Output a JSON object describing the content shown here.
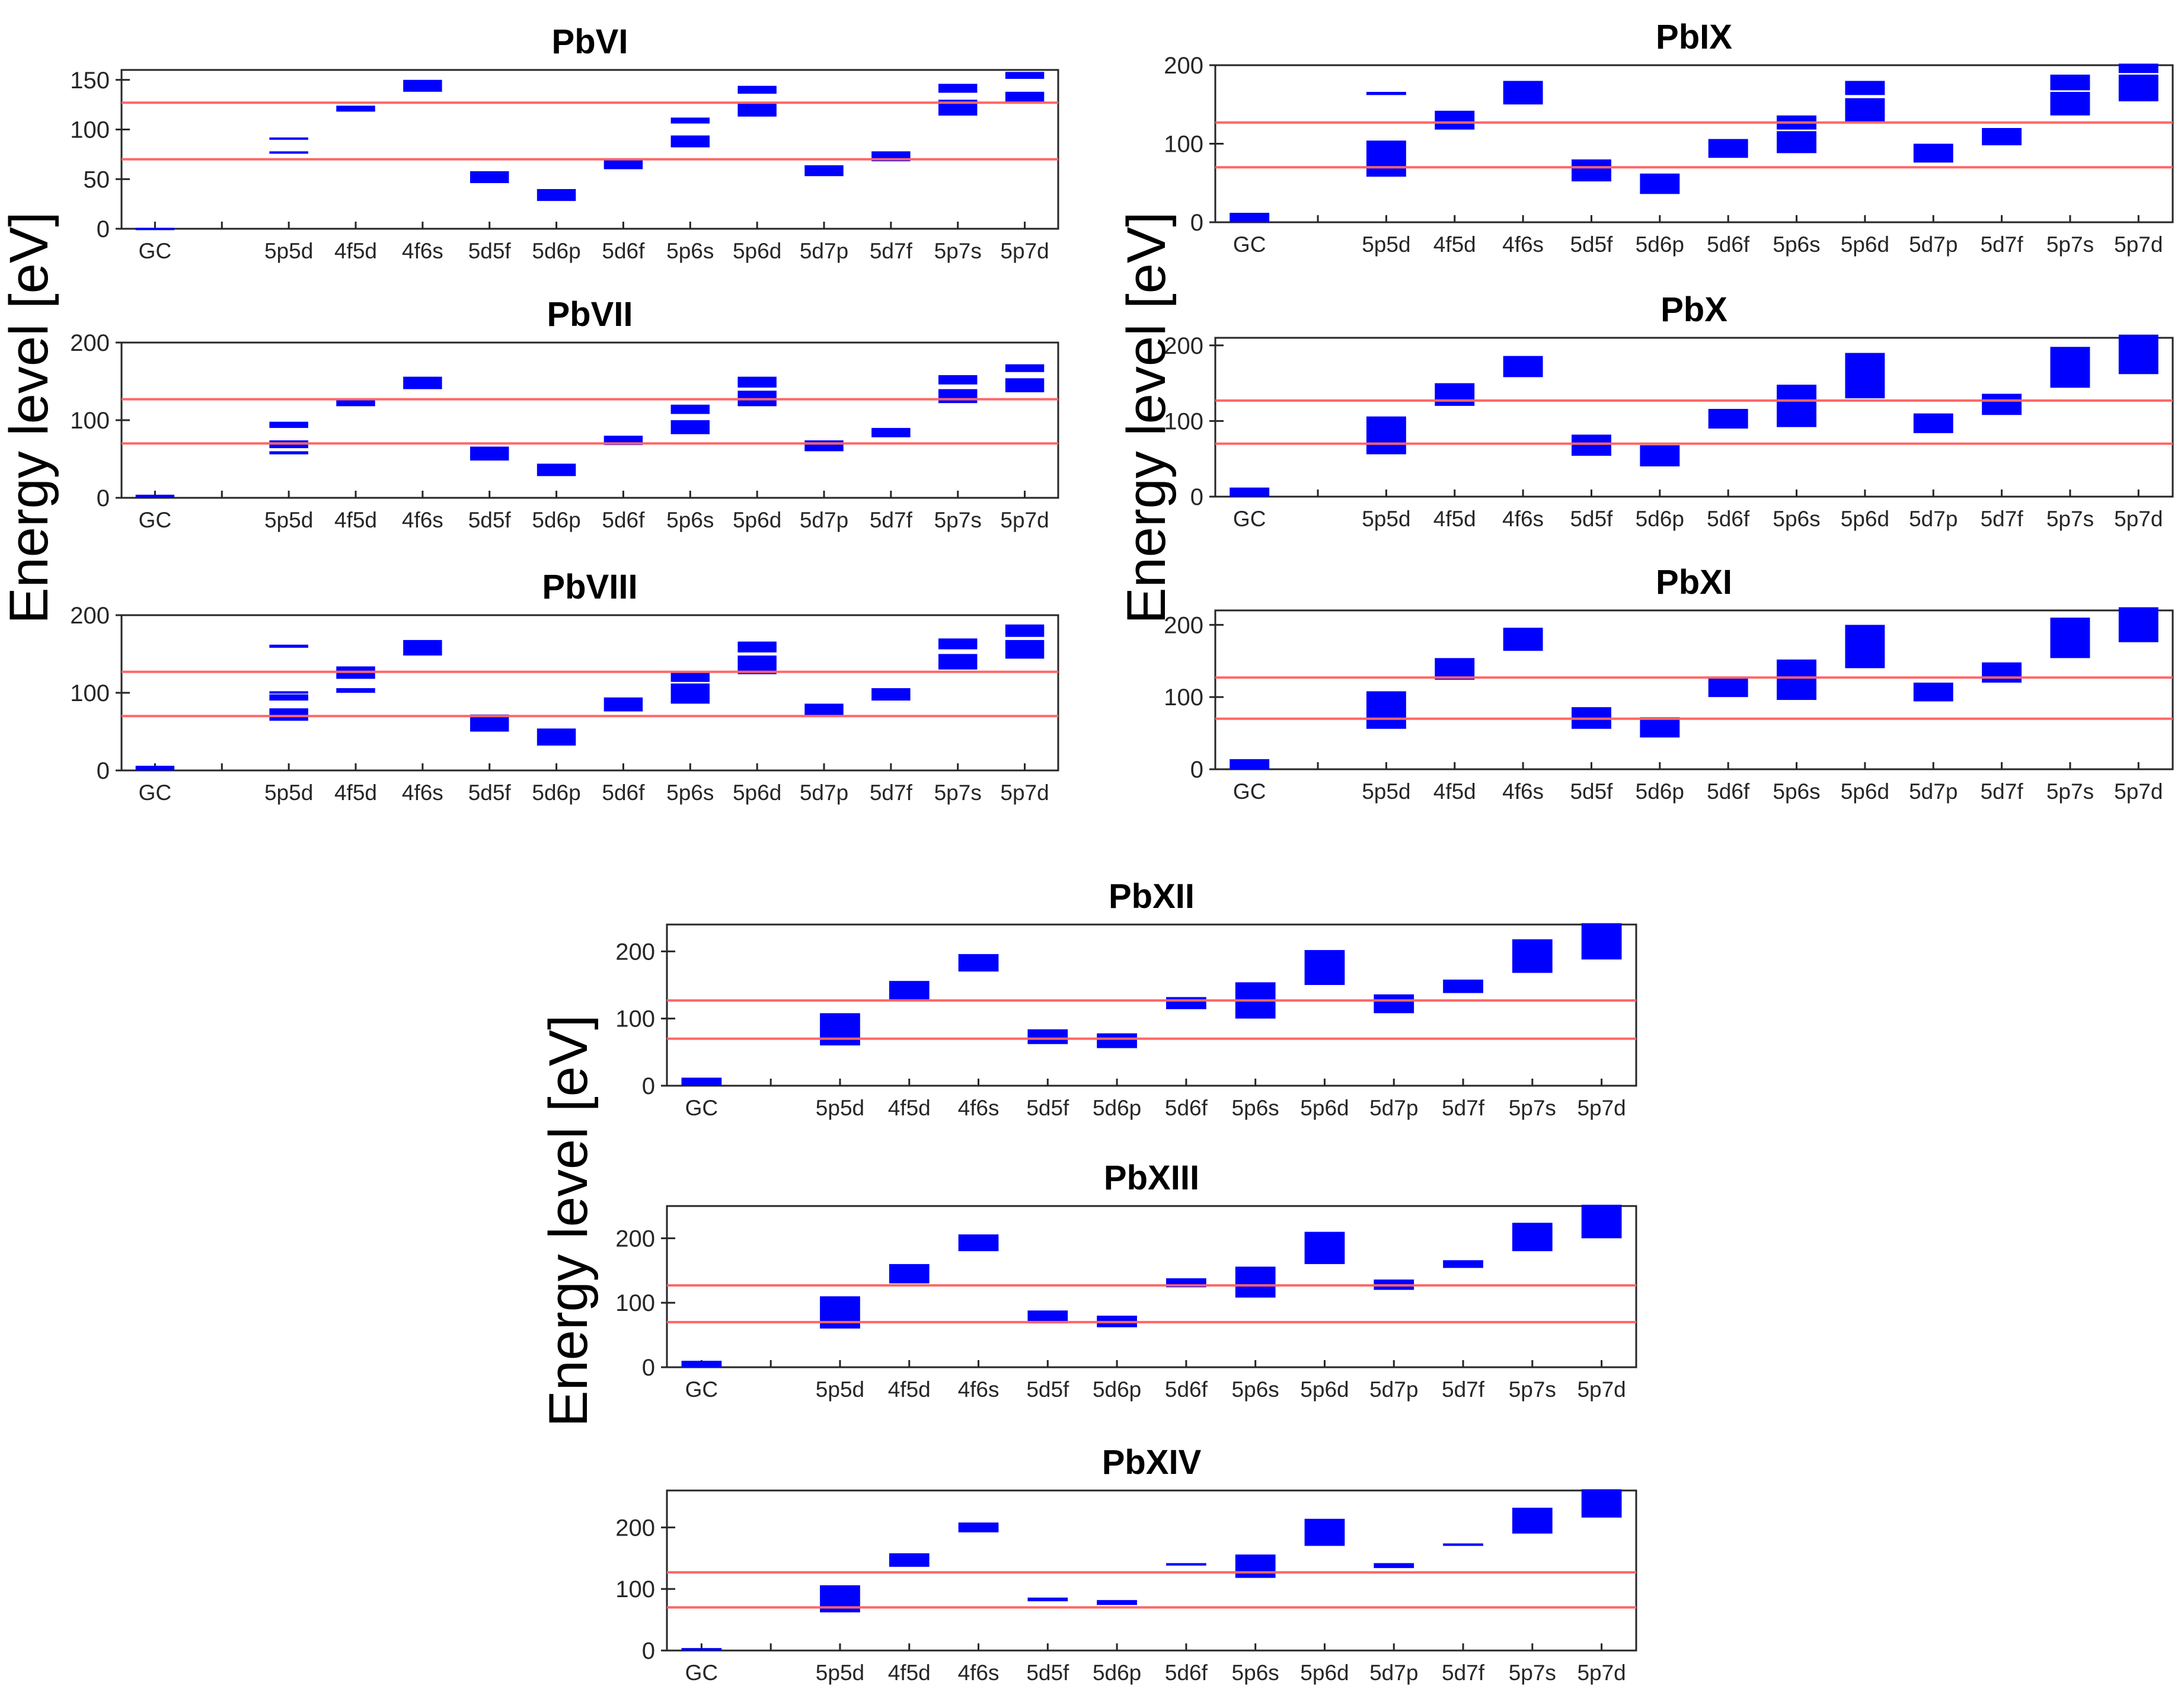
{
  "figure": {
    "ylabel_left": "Energy level [eV]",
    "ylabel_right": "Energy level [eV]",
    "ylabel_bottom": "Energy level [eV]",
    "colors": {
      "level": "#0000ff",
      "reference_line": "#ff6666",
      "axis": "#262626"
    }
  },
  "chart_data": [
    {
      "id": "pbvi",
      "type": "bar",
      "title": "PbVI",
      "categories": [
        "GC",
        "",
        "5p5d",
        "4f5d",
        "4f6s",
        "5d5f",
        "5d6p",
        "5d6f",
        "5p6s",
        "5p6d",
        "5d7p",
        "5d7f",
        "5p7s",
        "5p7d"
      ],
      "ylim": [
        0,
        160
      ],
      "yticks": [
        0,
        50,
        100,
        150
      ],
      "ref_lines": [
        70,
        127
      ],
      "level_bands": [
        {
          "category": "GC",
          "min": 0,
          "max": 1
        },
        {
          "category": "5p5d",
          "min": 76,
          "max": 78
        },
        {
          "category": "5p5d",
          "min": 91,
          "max": 92
        },
        {
          "category": "4f5d",
          "min": 118,
          "max": 124
        },
        {
          "category": "4f6s",
          "min": 138,
          "max": 150
        },
        {
          "category": "5d5f",
          "min": 46,
          "max": 58
        },
        {
          "category": "5d6p",
          "min": 28,
          "max": 40
        },
        {
          "category": "5d6f",
          "min": 60,
          "max": 70
        },
        {
          "category": "5p6s",
          "min": 82,
          "max": 94
        },
        {
          "category": "5p6s",
          "min": 106,
          "max": 112
        },
        {
          "category": "5p6d",
          "min": 113,
          "max": 126
        },
        {
          "category": "5p6d",
          "min": 136,
          "max": 144
        },
        {
          "category": "5d7p",
          "min": 53,
          "max": 64
        },
        {
          "category": "5d7f",
          "min": 68,
          "max": 78
        },
        {
          "category": "5p7s",
          "min": 114,
          "max": 130
        },
        {
          "category": "5p7s",
          "min": 137,
          "max": 146
        },
        {
          "category": "5p7d",
          "min": 127,
          "max": 138
        },
        {
          "category": "5p7d",
          "min": 151,
          "max": 158
        }
      ]
    },
    {
      "id": "pbvii",
      "type": "bar",
      "title": "PbVII",
      "categories": [
        "GC",
        "",
        "5p5d",
        "4f5d",
        "4f6s",
        "5d5f",
        "5d6p",
        "5d6f",
        "5p6s",
        "5p6d",
        "5d7p",
        "5d7f",
        "5p7s",
        "5p7d"
      ],
      "ylim": [
        0,
        200
      ],
      "yticks": [
        0,
        100,
        200
      ],
      "ref_lines": [
        70,
        127
      ],
      "level_bands": [
        {
          "category": "GC",
          "min": 0,
          "max": 4
        },
        {
          "category": "5p5d",
          "min": 56,
          "max": 60
        },
        {
          "category": "5p5d",
          "min": 64,
          "max": 74
        },
        {
          "category": "5p5d",
          "min": 90,
          "max": 98
        },
        {
          "category": "4f5d",
          "min": 118,
          "max": 128
        },
        {
          "category": "4f6s",
          "min": 140,
          "max": 156
        },
        {
          "category": "5d5f",
          "min": 48,
          "max": 66
        },
        {
          "category": "5d6p",
          "min": 28,
          "max": 44
        },
        {
          "category": "5d6f",
          "min": 68,
          "max": 80
        },
        {
          "category": "5p6s",
          "min": 82,
          "max": 100
        },
        {
          "category": "5p6s",
          "min": 108,
          "max": 120
        },
        {
          "category": "5p6d",
          "min": 118,
          "max": 138
        },
        {
          "category": "5p6d",
          "min": 142,
          "max": 156
        },
        {
          "category": "5d7p",
          "min": 60,
          "max": 74
        },
        {
          "category": "5d7f",
          "min": 78,
          "max": 90
        },
        {
          "category": "5p7s",
          "min": 122,
          "max": 140
        },
        {
          "category": "5p7s",
          "min": 146,
          "max": 158
        },
        {
          "category": "5p7d",
          "min": 136,
          "max": 154
        },
        {
          "category": "5p7d",
          "min": 162,
          "max": 172
        }
      ]
    },
    {
      "id": "pbviii",
      "type": "bar",
      "title": "PbVIII",
      "categories": [
        "GC",
        "",
        "5p5d",
        "4f5d",
        "4f6s",
        "5d5f",
        "5d6p",
        "5d6f",
        "5p6s",
        "5p6d",
        "5d7p",
        "5d7f",
        "5p7s",
        "5p7d"
      ],
      "ylim": [
        0,
        200
      ],
      "yticks": [
        0,
        100,
        200
      ],
      "ref_lines": [
        70,
        127
      ],
      "level_bands": [
        {
          "category": "GC",
          "min": 0,
          "max": 6
        },
        {
          "category": "5p5d",
          "min": 64,
          "max": 80
        },
        {
          "category": "5p5d",
          "min": 90,
          "max": 98
        },
        {
          "category": "5p5d",
          "min": 100,
          "max": 102
        },
        {
          "category": "5p5d",
          "min": 158,
          "max": 162
        },
        {
          "category": "4f5d",
          "min": 100,
          "max": 106
        },
        {
          "category": "4f5d",
          "min": 118,
          "max": 134
        },
        {
          "category": "4f6s",
          "min": 148,
          "max": 168
        },
        {
          "category": "5d5f",
          "min": 50,
          "max": 72
        },
        {
          "category": "5d6p",
          "min": 32,
          "max": 54
        },
        {
          "category": "5d6f",
          "min": 76,
          "max": 94
        },
        {
          "category": "5p6s",
          "min": 86,
          "max": 112
        },
        {
          "category": "5p6s",
          "min": 114,
          "max": 128
        },
        {
          "category": "5p6d",
          "min": 124,
          "max": 148
        },
        {
          "category": "5p6d",
          "min": 152,
          "max": 166
        },
        {
          "category": "5d7p",
          "min": 70,
          "max": 86
        },
        {
          "category": "5d7f",
          "min": 90,
          "max": 106
        },
        {
          "category": "5p7s",
          "min": 130,
          "max": 150
        },
        {
          "category": "5p7s",
          "min": 156,
          "max": 170
        },
        {
          "category": "5p7d",
          "min": 144,
          "max": 168
        },
        {
          "category": "5p7d",
          "min": 172,
          "max": 188
        }
      ]
    },
    {
      "id": "pbix",
      "type": "bar",
      "title": "PbIX",
      "categories": [
        "GC",
        "",
        "5p5d",
        "4f5d",
        "4f6s",
        "5d5f",
        "5d6p",
        "5d6f",
        "5p6s",
        "5p6d",
        "5d7p",
        "5d7f",
        "5p7s",
        "5p7d"
      ],
      "ylim": [
        0,
        200
      ],
      "yticks": [
        0,
        100,
        200
      ],
      "ref_lines": [
        70,
        127
      ],
      "level_bands": [
        {
          "category": "GC",
          "min": 0,
          "max": 12
        },
        {
          "category": "5p5d",
          "min": 58,
          "max": 104
        },
        {
          "category": "5p5d",
          "min": 162,
          "max": 166
        },
        {
          "category": "4f5d",
          "min": 118,
          "max": 142
        },
        {
          "category": "4f6s",
          "min": 150,
          "max": 180
        },
        {
          "category": "5d5f",
          "min": 52,
          "max": 80
        },
        {
          "category": "5d6p",
          "min": 36,
          "max": 62
        },
        {
          "category": "5d6f",
          "min": 82,
          "max": 106
        },
        {
          "category": "5p6s",
          "min": 88,
          "max": 116
        },
        {
          "category": "5p6s",
          "min": 118,
          "max": 136
        },
        {
          "category": "5p6d",
          "min": 126,
          "max": 158
        },
        {
          "category": "5p6d",
          "min": 162,
          "max": 180
        },
        {
          "category": "5d7p",
          "min": 76,
          "max": 100
        },
        {
          "category": "5d7f",
          "min": 98,
          "max": 120
        },
        {
          "category": "5p7s",
          "min": 136,
          "max": 166
        },
        {
          "category": "5p7s",
          "min": 168,
          "max": 188
        },
        {
          "category": "5p7d",
          "min": 154,
          "max": 188
        },
        {
          "category": "5p7d",
          "min": 190,
          "max": 202
        }
      ]
    },
    {
      "id": "pbx",
      "type": "bar",
      "title": "PbX",
      "categories": [
        "GC",
        "",
        "5p5d",
        "4f5d",
        "4f6s",
        "5d5f",
        "5d6p",
        "5d6f",
        "5p6s",
        "5p6d",
        "5d7p",
        "5d7f",
        "5p7s",
        "5p7d"
      ],
      "ylim": [
        0,
        210
      ],
      "yticks": [
        0,
        100,
        200
      ],
      "ref_lines": [
        70,
        127
      ],
      "level_bands": [
        {
          "category": "GC",
          "min": 0,
          "max": 12
        },
        {
          "category": "5p5d",
          "min": 56,
          "max": 106
        },
        {
          "category": "4f5d",
          "min": 120,
          "max": 150
        },
        {
          "category": "4f6s",
          "min": 158,
          "max": 186
        },
        {
          "category": "5d5f",
          "min": 54,
          "max": 82
        },
        {
          "category": "5d6p",
          "min": 40,
          "max": 68
        },
        {
          "category": "5d6f",
          "min": 90,
          "max": 116
        },
        {
          "category": "5p6s",
          "min": 92,
          "max": 148
        },
        {
          "category": "5p6d",
          "min": 130,
          "max": 190
        },
        {
          "category": "5d7p",
          "min": 84,
          "max": 110
        },
        {
          "category": "5d7f",
          "min": 108,
          "max": 136
        },
        {
          "category": "5p7s",
          "min": 144,
          "max": 198
        },
        {
          "category": "5p7d",
          "min": 162,
          "max": 216
        }
      ]
    },
    {
      "id": "pbxi",
      "type": "bar",
      "title": "PbXI",
      "categories": [
        "GC",
        "",
        "5p5d",
        "4f5d",
        "4f6s",
        "5d5f",
        "5d6p",
        "5d6f",
        "5p6s",
        "5p6d",
        "5d7p",
        "5d7f",
        "5p7s",
        "5p7d"
      ],
      "ylim": [
        0,
        220
      ],
      "yticks": [
        0,
        100,
        200
      ],
      "ref_lines": [
        70,
        127
      ],
      "level_bands": [
        {
          "category": "GC",
          "min": 0,
          "max": 14
        },
        {
          "category": "5p5d",
          "min": 56,
          "max": 108
        },
        {
          "category": "4f5d",
          "min": 124,
          "max": 154
        },
        {
          "category": "4f6s",
          "min": 164,
          "max": 196
        },
        {
          "category": "5d5f",
          "min": 56,
          "max": 86
        },
        {
          "category": "5d6p",
          "min": 44,
          "max": 72
        },
        {
          "category": "5d6f",
          "min": 100,
          "max": 128
        },
        {
          "category": "5p6s",
          "min": 96,
          "max": 152
        },
        {
          "category": "5p6d",
          "min": 140,
          "max": 200
        },
        {
          "category": "5d7p",
          "min": 94,
          "max": 120
        },
        {
          "category": "5d7f",
          "min": 120,
          "max": 148
        },
        {
          "category": "5p7s",
          "min": 154,
          "max": 210
        },
        {
          "category": "5p7d",
          "min": 176,
          "max": 228
        }
      ]
    },
    {
      "id": "pbxii",
      "type": "bar",
      "title": "PbXII",
      "categories": [
        "GC",
        "",
        "5p5d",
        "4f5d",
        "4f6s",
        "5d5f",
        "5d6p",
        "5d6f",
        "5p6s",
        "5p6d",
        "5d7p",
        "5d7f",
        "5p7s",
        "5p7d"
      ],
      "ylim": [
        0,
        240
      ],
      "yticks": [
        0,
        100,
        200
      ],
      "ref_lines": [
        70,
        127
      ],
      "level_bands": [
        {
          "category": "GC",
          "min": 0,
          "max": 12
        },
        {
          "category": "5p5d",
          "min": 60,
          "max": 108
        },
        {
          "category": "4f5d",
          "min": 126,
          "max": 156
        },
        {
          "category": "4f6s",
          "min": 170,
          "max": 196
        },
        {
          "category": "5d5f",
          "min": 62,
          "max": 84
        },
        {
          "category": "5d6p",
          "min": 56,
          "max": 78
        },
        {
          "category": "5d6f",
          "min": 114,
          "max": 132
        },
        {
          "category": "5p6s",
          "min": 100,
          "max": 154
        },
        {
          "category": "5p6d",
          "min": 150,
          "max": 202
        },
        {
          "category": "5d7p",
          "min": 108,
          "max": 136
        },
        {
          "category": "5d7f",
          "min": 138,
          "max": 158
        },
        {
          "category": "5p7s",
          "min": 168,
          "max": 218
        },
        {
          "category": "5p7d",
          "min": 188,
          "max": 242
        }
      ]
    },
    {
      "id": "pbxiii",
      "type": "bar",
      "title": "PbXIII",
      "categories": [
        "GC",
        "",
        "5p5d",
        "4f5d",
        "4f6s",
        "5d5f",
        "5d6p",
        "5d6f",
        "5p6s",
        "5p6d",
        "5d7p",
        "5d7f",
        "5p7s",
        "5p7d"
      ],
      "ylim": [
        0,
        250
      ],
      "yticks": [
        0,
        100,
        200
      ],
      "ref_lines": [
        70,
        127
      ],
      "level_bands": [
        {
          "category": "GC",
          "min": 0,
          "max": 10
        },
        {
          "category": "5p5d",
          "min": 60,
          "max": 110
        },
        {
          "category": "4f5d",
          "min": 130,
          "max": 160
        },
        {
          "category": "4f6s",
          "min": 180,
          "max": 206
        },
        {
          "category": "5d5f",
          "min": 68,
          "max": 88
        },
        {
          "category": "5d6p",
          "min": 62,
          "max": 80
        },
        {
          "category": "5d6f",
          "min": 124,
          "max": 138
        },
        {
          "category": "5p6s",
          "min": 108,
          "max": 156
        },
        {
          "category": "5p6d",
          "min": 160,
          "max": 210
        },
        {
          "category": "5d7p",
          "min": 120,
          "max": 136
        },
        {
          "category": "5d7f",
          "min": 154,
          "max": 166
        },
        {
          "category": "5p7s",
          "min": 180,
          "max": 224
        },
        {
          "category": "5p7d",
          "min": 200,
          "max": 252
        }
      ]
    },
    {
      "id": "pbxiv",
      "type": "bar",
      "title": "PbXIV",
      "categories": [
        "GC",
        "",
        "5p5d",
        "4f5d",
        "4f6s",
        "5d5f",
        "5d6p",
        "5d6f",
        "5p6s",
        "5p6d",
        "5d7p",
        "5d7f",
        "5p7s",
        "5p7d"
      ],
      "ylim": [
        0,
        260
      ],
      "yticks": [
        0,
        100,
        200
      ],
      "ref_lines": [
        70,
        127
      ],
      "level_bands": [
        {
          "category": "GC",
          "min": 0,
          "max": 4
        },
        {
          "category": "5p5d",
          "min": 62,
          "max": 106
        },
        {
          "category": "4f5d",
          "min": 136,
          "max": 158
        },
        {
          "category": "4f6s",
          "min": 192,
          "max": 208
        },
        {
          "category": "5d5f",
          "min": 80,
          "max": 86
        },
        {
          "category": "5d6p",
          "min": 74,
          "max": 82
        },
        {
          "category": "5d6f",
          "min": 138,
          "max": 142
        },
        {
          "category": "5p6s",
          "min": 118,
          "max": 156
        },
        {
          "category": "5p6d",
          "min": 170,
          "max": 214
        },
        {
          "category": "5d7p",
          "min": 134,
          "max": 142
        },
        {
          "category": "5d7f",
          "min": 170,
          "max": 174
        },
        {
          "category": "5p7s",
          "min": 190,
          "max": 232
        },
        {
          "category": "5p7d",
          "min": 216,
          "max": 262
        }
      ]
    }
  ]
}
